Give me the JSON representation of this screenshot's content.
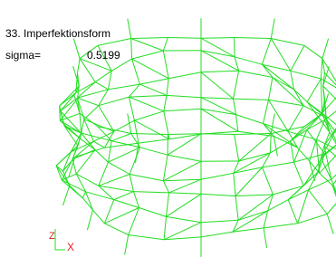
{
  "header": {
    "title": "33. Imperfektionsform",
    "sigma_label": "sigma=",
    "sigma_value": 0.5199
  },
  "axes": {
    "z": "Z",
    "x": "X"
  }
}
